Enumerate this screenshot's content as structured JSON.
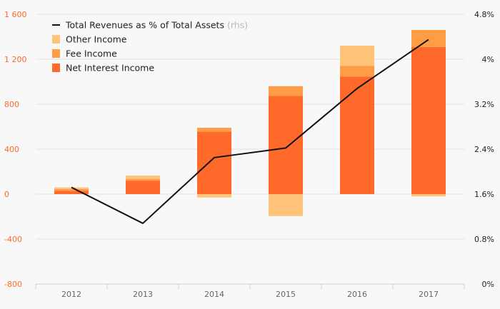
{
  "chart_data": {
    "type": "bar",
    "categories": [
      "2012",
      "2013",
      "2014",
      "2015",
      "2016",
      "2017"
    ],
    "stacked": true,
    "series": [
      {
        "name": "Net Interest Income",
        "color": "#ff6a2a",
        "values": [
          30,
          120,
          555,
          875,
          1045,
          1310
        ]
      },
      {
        "name": "Fee Income",
        "color": "#ff9c45",
        "values": [
          15,
          15,
          35,
          85,
          95,
          150
        ]
      },
      {
        "name": "Other Income",
        "color": "#ffc37a",
        "values": [
          15,
          30,
          -30,
          -195,
          180,
          -20
        ]
      }
    ],
    "line_series": {
      "name": "Total Revenues as % of Total Assets",
      "name_suffix": "(rhs)",
      "color": "#111111",
      "axis": "right",
      "values": [
        1.72,
        1.08,
        2.25,
        2.42,
        3.48,
        4.35
      ]
    },
    "ylim": [
      -800,
      1600
    ],
    "y_ticks": [
      "-800",
      "-400",
      "0",
      "400",
      "800",
      "1 200",
      "1 600"
    ],
    "y_tick_values": [
      -800,
      -400,
      0,
      400,
      800,
      1200,
      1600
    ],
    "y2lim": [
      0,
      4.8
    ],
    "y2_ticks": [
      "0%",
      "0.8%",
      "1.6%",
      "2.4%",
      "3.2%",
      "4%",
      "4.8%"
    ],
    "y2_tick_values": [
      0,
      0.8,
      1.6,
      2.4,
      3.2,
      4.0,
      4.8
    ],
    "legend_position": "top-left",
    "colors": {
      "left_axis": "#ff6a2a",
      "right_axis": "#222222",
      "grid": "#e2e2e2",
      "background": "#f8f8f8"
    },
    "grid": true
  }
}
